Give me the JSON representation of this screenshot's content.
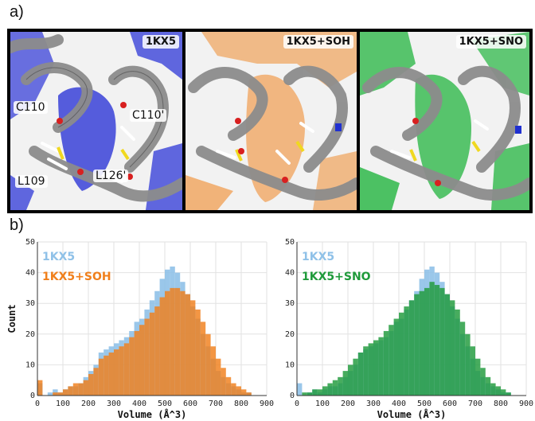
{
  "figure": {
    "panel_a_letter": "a)",
    "panel_b_letter": "b)"
  },
  "molecules": [
    {
      "label": "1KX5",
      "surface_color": "#3a42d8",
      "residue_labels": [
        "C110",
        "C110'",
        "L109",
        "L126'"
      ]
    },
    {
      "label": "1KX5+SOH",
      "surface_color": "#f0a25a",
      "residue_labels": []
    },
    {
      "label": "1KX5+SNO",
      "surface_color": "#2fb84a",
      "residue_labels": []
    }
  ],
  "colors": {
    "base_series": "#8fc1e8",
    "soh_series": "#f07f1b",
    "sno_series": "#1f9a3a",
    "ribbon": "#8c8c8c"
  },
  "chart_data": [
    {
      "type": "bar",
      "title": "",
      "xlabel": "Volume (Å^3)",
      "ylabel": "Count",
      "xlim": [
        0,
        900
      ],
      "ylim": [
        0,
        50
      ],
      "xticks": [
        0,
        100,
        200,
        300,
        400,
        500,
        600,
        700,
        800,
        900
      ],
      "yticks": [
        0,
        10,
        20,
        30,
        40,
        50
      ],
      "grid": true,
      "legend_position": "top-left",
      "bin_centers": [
        10,
        30,
        50,
        70,
        90,
        110,
        130,
        150,
        170,
        190,
        210,
        230,
        250,
        270,
        290,
        310,
        330,
        350,
        370,
        390,
        410,
        430,
        450,
        470,
        490,
        510,
        530,
        550,
        570,
        590,
        610,
        630,
        650,
        670,
        690,
        710,
        730,
        750,
        770,
        790,
        810,
        830,
        850
      ],
      "series": [
        {
          "name": "1KX5",
          "color": "#8fc1e8",
          "values": [
            4,
            0,
            1,
            2,
            1,
            2,
            3,
            3,
            4,
            6,
            8,
            10,
            14,
            15,
            16,
            17,
            18,
            19,
            21,
            24,
            25,
            28,
            31,
            34,
            38,
            41,
            42,
            40,
            37,
            33,
            29,
            25,
            20,
            16,
            12,
            8,
            6,
            4,
            3,
            2,
            1,
            1,
            0
          ]
        },
        {
          "name": "1KX5+SOH",
          "color": "#f07f1b",
          "values": [
            5,
            0,
            0,
            1,
            1,
            2,
            3,
            4,
            4,
            5,
            7,
            9,
            12,
            13,
            14,
            15,
            16,
            17,
            19,
            21,
            23,
            25,
            27,
            29,
            32,
            34,
            35,
            35,
            34,
            33,
            31,
            28,
            24,
            20,
            16,
            12,
            9,
            6,
            4,
            3,
            2,
            1,
            0
          ]
        }
      ]
    },
    {
      "type": "bar",
      "title": "",
      "xlabel": "Volume (Å^3)",
      "ylabel": "",
      "xlim": [
        0,
        900
      ],
      "ylim": [
        0,
        50
      ],
      "xticks": [
        0,
        100,
        200,
        300,
        400,
        500,
        600,
        700,
        800,
        900
      ],
      "yticks": [
        0,
        10,
        20,
        30,
        40,
        50
      ],
      "grid": true,
      "legend_position": "top-left",
      "bin_centers": [
        10,
        30,
        50,
        70,
        90,
        110,
        130,
        150,
        170,
        190,
        210,
        230,
        250,
        270,
        290,
        310,
        330,
        350,
        370,
        390,
        410,
        430,
        450,
        470,
        490,
        510,
        530,
        550,
        570,
        590,
        610,
        630,
        650,
        670,
        690,
        710,
        730,
        750,
        770,
        790,
        810,
        830,
        850
      ],
      "series": [
        {
          "name": "1KX5",
          "color": "#8fc1e8",
          "values": [
            4,
            0,
            1,
            2,
            1,
            2,
            3,
            3,
            4,
            6,
            8,
            10,
            14,
            15,
            16,
            17,
            18,
            19,
            21,
            24,
            25,
            28,
            31,
            34,
            38,
            41,
            42,
            40,
            37,
            33,
            29,
            25,
            20,
            16,
            12,
            8,
            6,
            4,
            3,
            2,
            1,
            1,
            0
          ]
        },
        {
          "name": "1KX5+SNO",
          "color": "#1f9a3a",
          "values": [
            0,
            1,
            1,
            2,
            2,
            3,
            4,
            5,
            6,
            8,
            10,
            12,
            14,
            16,
            17,
            18,
            19,
            21,
            23,
            25,
            27,
            29,
            31,
            33,
            34,
            35,
            37,
            36,
            35,
            33,
            31,
            28,
            24,
            20,
            16,
            12,
            9,
            6,
            4,
            3,
            2,
            1,
            0
          ]
        }
      ]
    }
  ]
}
